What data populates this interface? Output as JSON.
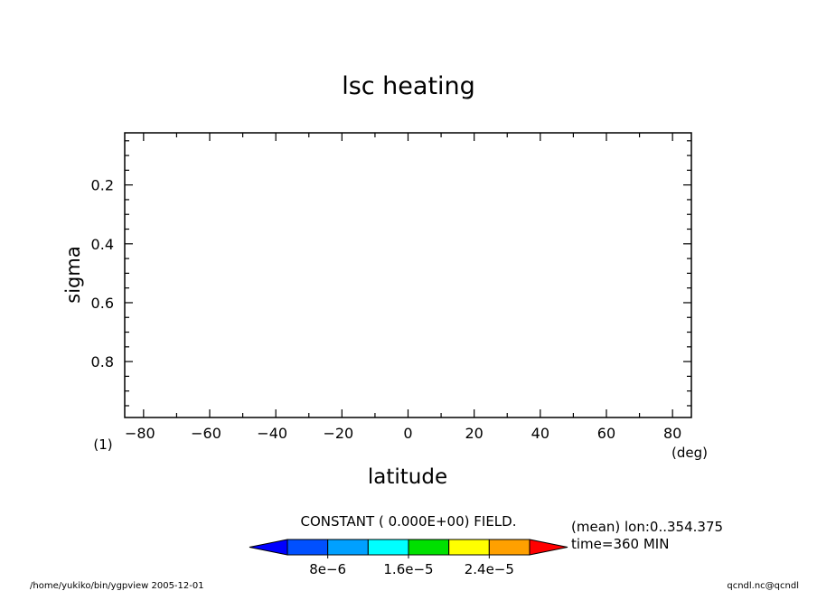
{
  "chart_data": {
    "type": "heatmap",
    "title": "lsc heating",
    "xlabel": "latitude",
    "ylabel": "sigma",
    "x_unit": "(deg)",
    "y_unit": "(1)",
    "xlim": [
      -85.7,
      85.7
    ],
    "ylim": [
      0.023,
      0.99
    ],
    "y_inverted": true,
    "x_ticks": [
      -80,
      -60,
      -40,
      -20,
      0,
      20,
      40,
      60,
      80
    ],
    "y_ticks": [
      0.2,
      0.4,
      0.6,
      0.8
    ],
    "y_tick_labels": [
      "0.2",
      "0.4",
      "0.6",
      "0.8"
    ],
    "values": [],
    "field_message": "CONSTANT ( 0.000E+00) FIELD.",
    "colorbar": {
      "colors": [
        "#0000ff",
        "#0050ff",
        "#00a0ff",
        "#00ffff",
        "#00e000",
        "#ffff00",
        "#ffa000",
        "#ff0000"
      ],
      "levels": [
        8e-06,
        1.6e-05,
        2.4e-05
      ],
      "tick_labels": [
        "8e-6",
        "1.6e-5",
        "2.4e-5"
      ]
    },
    "info_lines": [
      "(mean) lon:0..354.375",
      "time=360 MIN"
    ]
  },
  "footer": {
    "left": "/home/yukiko/bin/ygpview  2005-12-01",
    "right": "qcndl.nc@qcndl"
  }
}
